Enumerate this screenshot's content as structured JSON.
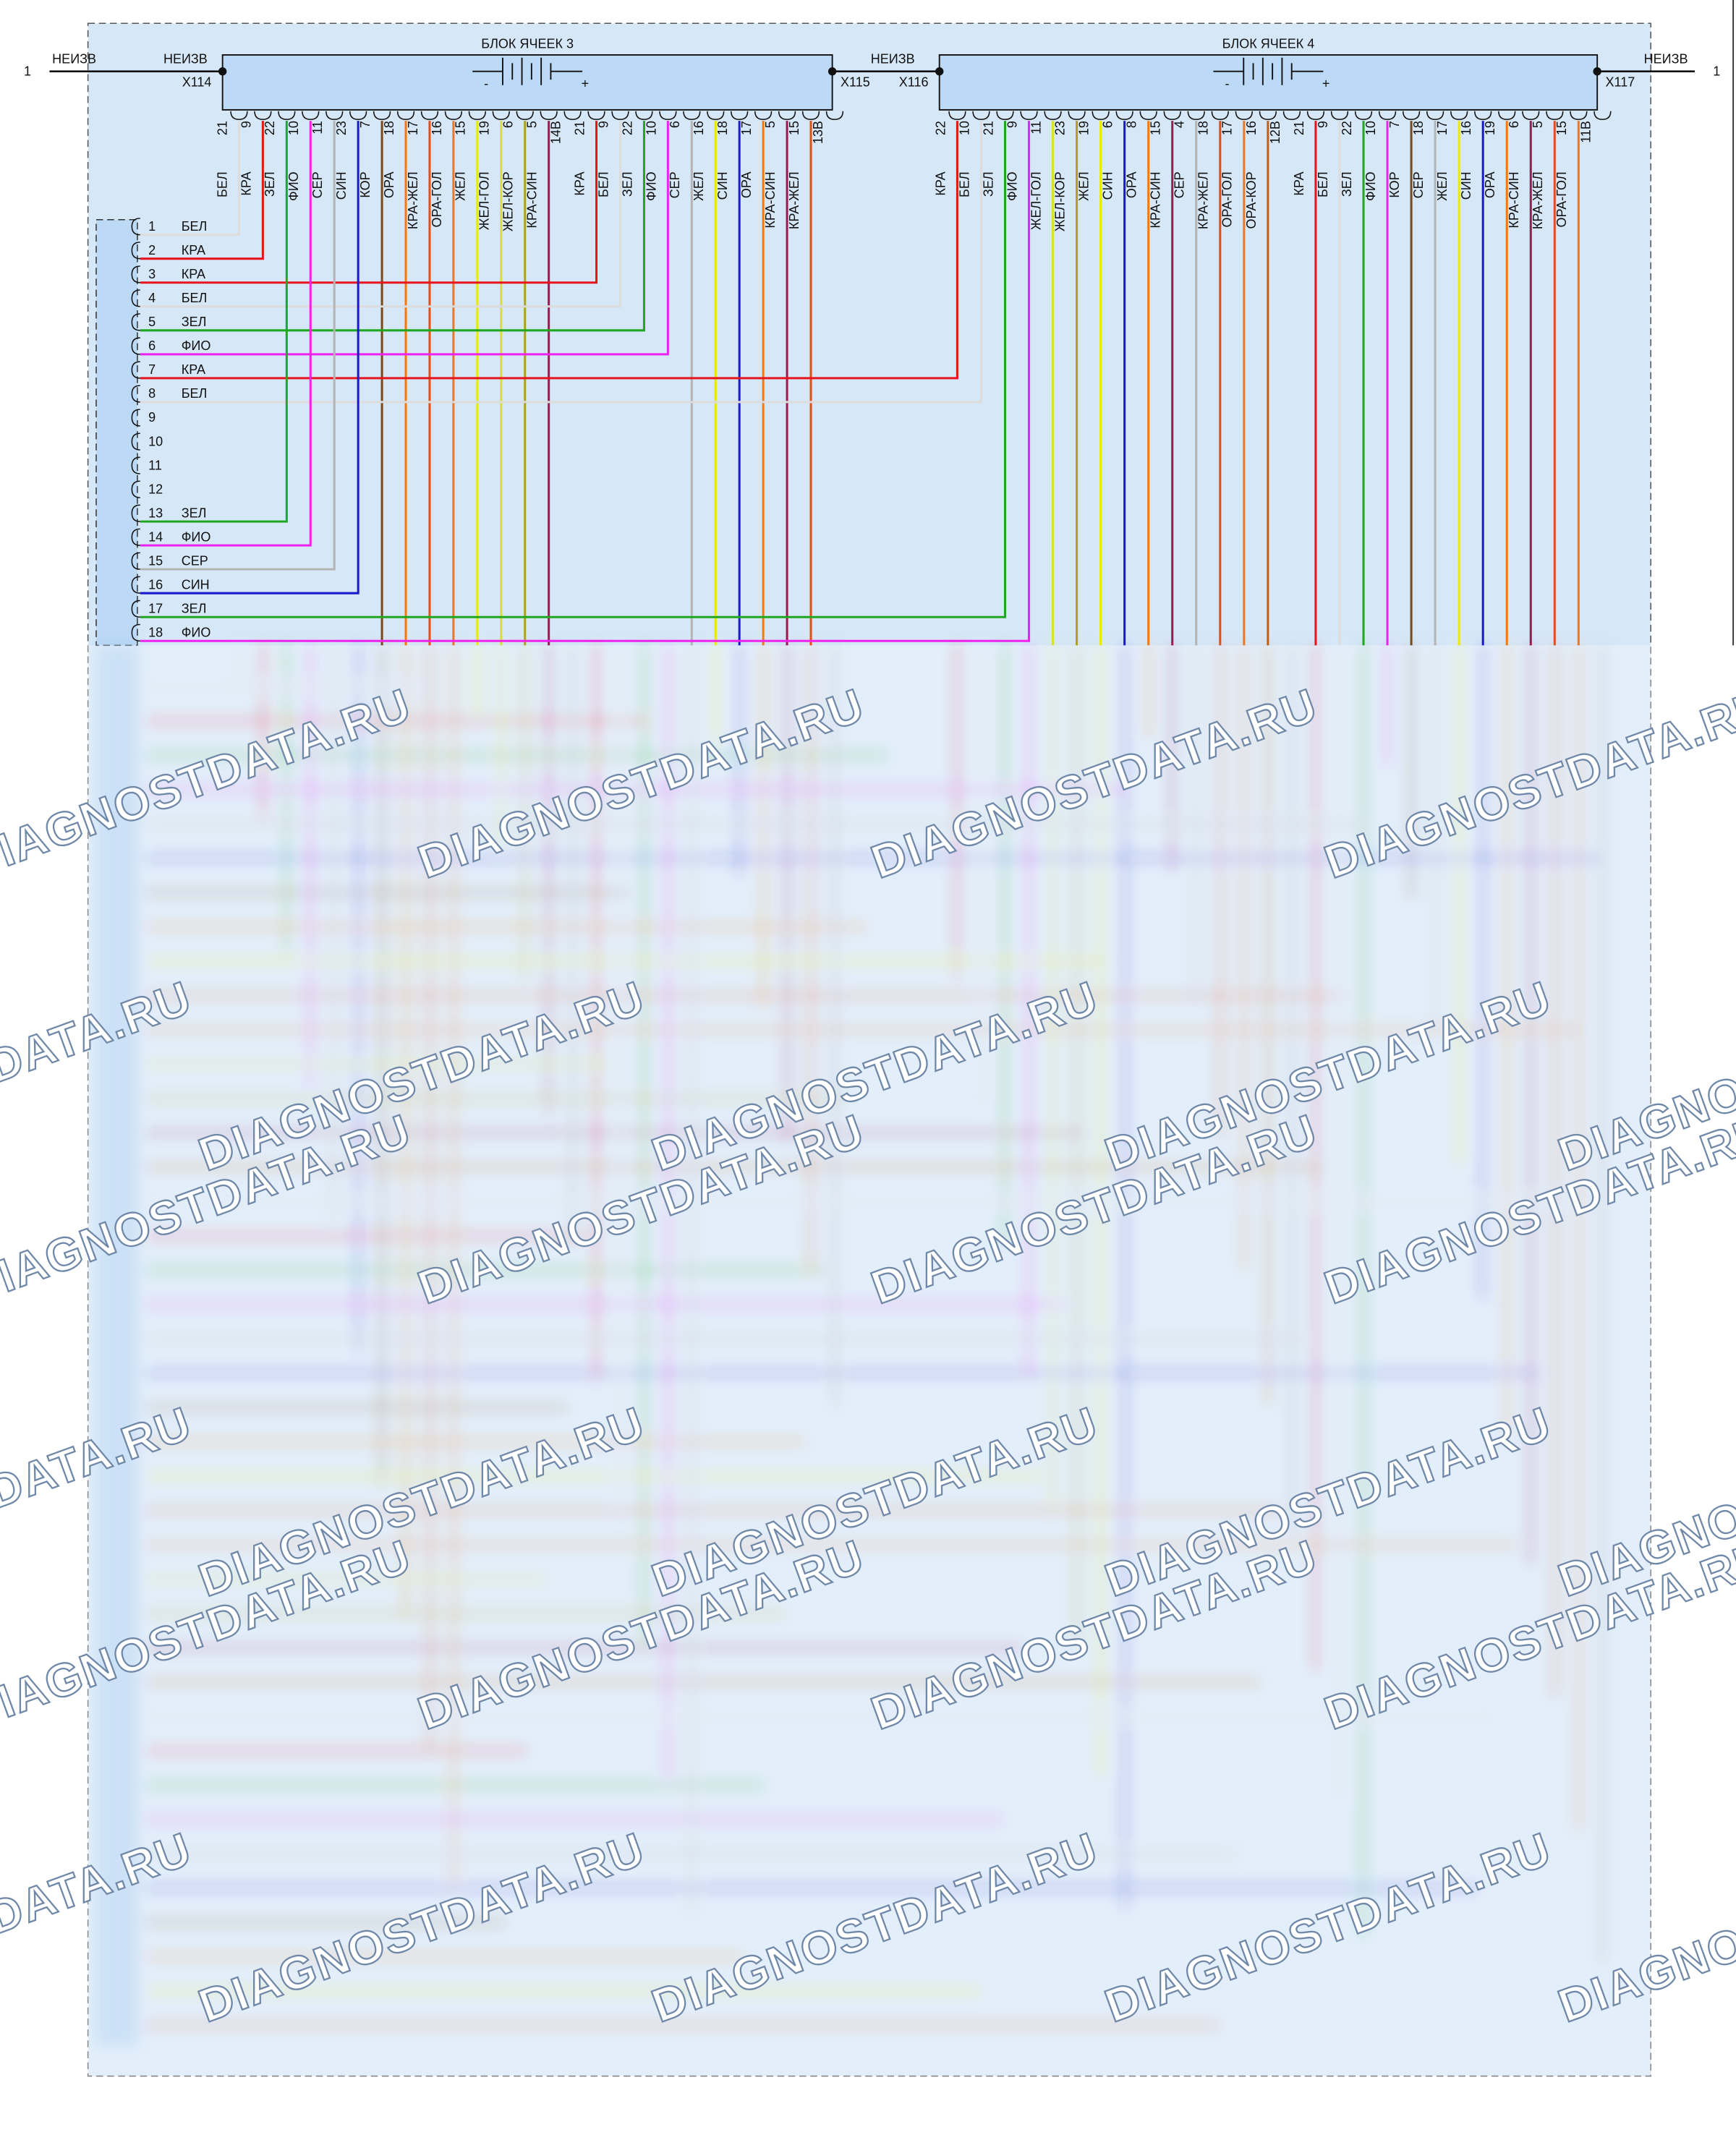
{
  "left_terminal": {
    "number": "1",
    "label": "НЕИЗВ"
  },
  "right_terminal": {
    "number": "1",
    "label": "НЕИЗВ"
  },
  "link_label": "НЕИЗВ",
  "blocks": [
    {
      "title": "БЛОК ЯЧЕЕК 3",
      "left_label": "НЕИЗВ",
      "left_connector": "X114",
      "right_connector": "X115",
      "polarity": [
        "-",
        "+"
      ],
      "pins": [
        {
          "number": "21",
          "wire": "БЕЛ"
        },
        {
          "number": "9",
          "wire": "КРА"
        },
        {
          "number": "22",
          "wire": "ЗЕЛ"
        },
        {
          "number": "10",
          "wire": "ФИО"
        },
        {
          "number": "11",
          "wire": "СЕР"
        },
        {
          "number": "23",
          "wire": "СИН"
        },
        {
          "number": "7",
          "wire": "КОР"
        },
        {
          "number": "18",
          "wire": "ОРА"
        },
        {
          "number": "17",
          "wire": "КРА-ЖЕЛ"
        },
        {
          "number": "16",
          "wire": "ОРА-ГОЛ"
        },
        {
          "number": "15",
          "wire": "ЖЕЛ"
        },
        {
          "number": "19",
          "wire": "ЖЕЛ-ГОЛ"
        },
        {
          "number": "6",
          "wire": "ЖЕЛ-КОР"
        },
        {
          "number": "5",
          "wire": "КРА-СИН"
        },
        {
          "number": "14В",
          "wire": null
        },
        {
          "number": "21",
          "wire": "КРА"
        },
        {
          "number": "9",
          "wire": "БЕЛ"
        },
        {
          "number": "22",
          "wire": "ЗЕЛ"
        },
        {
          "number": "10",
          "wire": "ФИО"
        },
        {
          "number": "6",
          "wire": "СЕР"
        },
        {
          "number": "16",
          "wire": "ЖЕЛ"
        },
        {
          "number": "18",
          "wire": "СИН"
        },
        {
          "number": "17",
          "wire": "ОРА"
        },
        {
          "number": "5",
          "wire": "КРА-СИН"
        },
        {
          "number": "15",
          "wire": "КРА-ЖЕЛ"
        },
        {
          "number": "13В",
          "wire": null
        }
      ]
    },
    {
      "title": "БЛОК ЯЧЕЕК 4",
      "left_label": null,
      "left_connector": "X116",
      "right_connector": "X117",
      "polarity": [
        "-",
        "+"
      ],
      "pins": [
        {
          "number": "22",
          "wire": "КРА"
        },
        {
          "number": "10",
          "wire": "БЕЛ"
        },
        {
          "number": "21",
          "wire": "ЗЕЛ"
        },
        {
          "number": "9",
          "wire": "ФИО"
        },
        {
          "number": "11",
          "wire": "ЖЕЛ-ГОЛ"
        },
        {
          "number": "23",
          "wire": "ЖЕЛ-КОР"
        },
        {
          "number": "19",
          "wire": "ЖЕЛ"
        },
        {
          "number": "6",
          "wire": "СИН"
        },
        {
          "number": "8",
          "wire": "ОРА"
        },
        {
          "number": "15",
          "wire": "КРА-СИН"
        },
        {
          "number": "4",
          "wire": "СЕР"
        },
        {
          "number": "18",
          "wire": "КРА-ЖЕЛ"
        },
        {
          "number": "17",
          "wire": "ОРА-ГОЛ"
        },
        {
          "number": "16",
          "wire": "ОРА-КОР"
        },
        {
          "number": "12В",
          "wire": null
        },
        {
          "number": "21",
          "wire": "КРА"
        },
        {
          "number": "9",
          "wire": "БЕЛ"
        },
        {
          "number": "22",
          "wire": "ЗЕЛ"
        },
        {
          "number": "10",
          "wire": "ФИО"
        },
        {
          "number": "7",
          "wire": "КОР"
        },
        {
          "number": "18",
          "wire": "СЕР"
        },
        {
          "number": "17",
          "wire": "ЖЕЛ"
        },
        {
          "number": "16",
          "wire": "СИН"
        },
        {
          "number": "19",
          "wire": "ОРА"
        },
        {
          "number": "6",
          "wire": "КРА-СИН"
        },
        {
          "number": "5",
          "wire": "КРА-ЖЕЛ"
        },
        {
          "number": "15",
          "wire": "ОРА-ГОЛ"
        },
        {
          "number": "11В",
          "wire": null
        }
      ]
    }
  ],
  "connector": {
    "rows": [
      {
        "number": "1",
        "wire": "БЕЛ"
      },
      {
        "number": "2",
        "wire": "КРА"
      },
      {
        "number": "3",
        "wire": "КРА"
      },
      {
        "number": "4",
        "wire": "БЕЛ"
      },
      {
        "number": "5",
        "wire": "ЗЕЛ"
      },
      {
        "number": "6",
        "wire": "ФИО"
      },
      {
        "number": "7",
        "wire": "КРА"
      },
      {
        "number": "8",
        "wire": "БЕЛ"
      },
      {
        "number": "9",
        "wire": null
      },
      {
        "number": "10",
        "wire": null
      },
      {
        "number": "11",
        "wire": null
      },
      {
        "number": "12",
        "wire": null
      },
      {
        "number": "13",
        "wire": "ЗЕЛ"
      },
      {
        "number": "14",
        "wire": "ФИО"
      },
      {
        "number": "15",
        "wire": "СЕР"
      },
      {
        "number": "16",
        "wire": "СИН"
      },
      {
        "number": "17",
        "wire": "ЗЕЛ"
      },
      {
        "number": "18",
        "wire": "ФИО"
      }
    ]
  },
  "wire_colors": {
    "БЕЛ": "#dcdcdc",
    "КРА": "#e8141c",
    "ЗЕЛ": "#1fa81f",
    "ФИО": "#ee22ee",
    "СЕР": "#b4b4b4",
    "СИН": "#1a1acc",
    "КОР": "#7a4a1a",
    "ОРА": "#f07a10",
    "ЖЕЛ": "#eaea00",
    "КРА-ЖЕЛ": "#e0501a",
    "ОРА-ГОЛ": "#e8782a",
    "ЖЕЛ-ГОЛ": "#d8e030",
    "ЖЕЛ-КОР": "#b0a020",
    "КРА-СИН": "#a01850",
    "ОРА-КОР": "#c06018"
  },
  "watermark": "DIAGNOSTDATA.RU"
}
